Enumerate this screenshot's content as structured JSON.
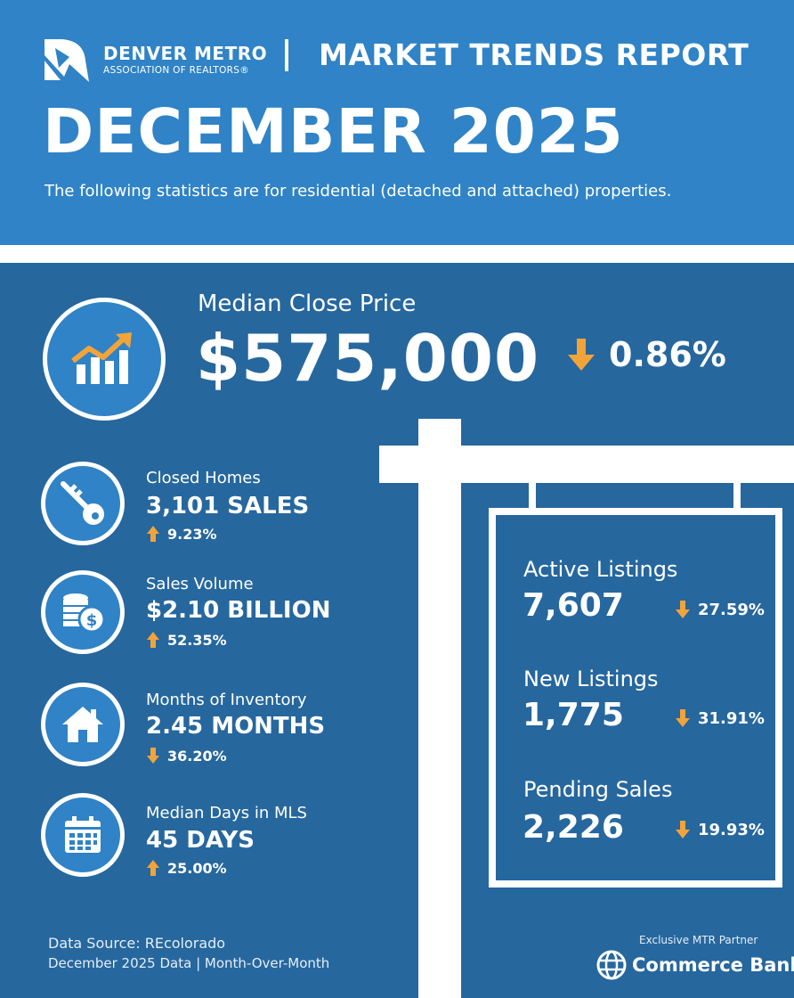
{
  "header": {
    "org_name": "DENVER METRO",
    "org_sub": "ASSOCIATION OF REALTORS®",
    "report_title": "MARKET TRENDS REPORT",
    "month_title": "DECEMBER 2025",
    "subtitle": "The following statistics are for residential (detached and attached) properties."
  },
  "colors": {
    "header_blue": "#2f83c6",
    "body_blue": "#26679e",
    "arrow_orange": "#f2a43a",
    "white": "#ffffff"
  },
  "median_close_price": {
    "icon": "bar-chart-trend-icon",
    "label": "Median Close Price",
    "value": "$575,000",
    "direction": "down",
    "change": "0.86%"
  },
  "left_stats": [
    {
      "icon": "key-icon",
      "label": "Closed Homes",
      "value": "3,101 SALES",
      "direction": "up",
      "change": "9.23%"
    },
    {
      "icon": "coins-icon",
      "label": "Sales Volume",
      "value": "$2.10 BILLION",
      "direction": "up",
      "change": "52.35%"
    },
    {
      "icon": "house-icon",
      "label": "Months of Inventory",
      "value": "2.45 MONTHS",
      "direction": "down",
      "change": "36.20%"
    },
    {
      "icon": "calendar-icon",
      "label": "Median Days in MLS",
      "value": "45 DAYS",
      "direction": "up",
      "change": "25.00%"
    }
  ],
  "sign_stats": [
    {
      "label": "Active Listings",
      "value": "7,607",
      "direction": "down",
      "change": "27.59%"
    },
    {
      "label": "New Listings",
      "value": "1,775",
      "direction": "down",
      "change": "31.91%"
    },
    {
      "label": "Pending Sales",
      "value": "2,226",
      "direction": "down",
      "change": "19.93%"
    }
  ],
  "footer": {
    "source_line1": "Data Source: REcolorado",
    "source_line2": "December 2025 Data | Month-Over-Month",
    "partner_label": "Exclusive MTR Partner",
    "partner_name": "Commerce Bank",
    "partner_icon": "globe-icon"
  }
}
